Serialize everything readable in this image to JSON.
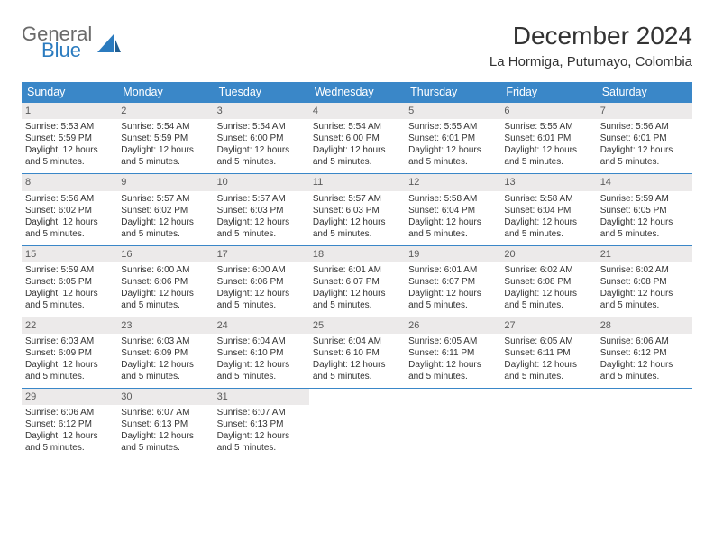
{
  "brand": {
    "general": "General",
    "blue": "Blue",
    "accent": "#2b7bbf",
    "gray": "#6a6a6a"
  },
  "title": "December 2024",
  "location": "La Hormiga, Putumayo, Colombia",
  "header_bg": "#3a87c8",
  "daynum_bg": "#eceaea",
  "columns": [
    "Sunday",
    "Monday",
    "Tuesday",
    "Wednesday",
    "Thursday",
    "Friday",
    "Saturday"
  ],
  "weeks": [
    [
      {
        "n": "1",
        "sr": "Sunrise: 5:53 AM",
        "ss": "Sunset: 5:59 PM",
        "dl": "Daylight: 12 hours and 5 minutes."
      },
      {
        "n": "2",
        "sr": "Sunrise: 5:54 AM",
        "ss": "Sunset: 5:59 PM",
        "dl": "Daylight: 12 hours and 5 minutes."
      },
      {
        "n": "3",
        "sr": "Sunrise: 5:54 AM",
        "ss": "Sunset: 6:00 PM",
        "dl": "Daylight: 12 hours and 5 minutes."
      },
      {
        "n": "4",
        "sr": "Sunrise: 5:54 AM",
        "ss": "Sunset: 6:00 PM",
        "dl": "Daylight: 12 hours and 5 minutes."
      },
      {
        "n": "5",
        "sr": "Sunrise: 5:55 AM",
        "ss": "Sunset: 6:01 PM",
        "dl": "Daylight: 12 hours and 5 minutes."
      },
      {
        "n": "6",
        "sr": "Sunrise: 5:55 AM",
        "ss": "Sunset: 6:01 PM",
        "dl": "Daylight: 12 hours and 5 minutes."
      },
      {
        "n": "7",
        "sr": "Sunrise: 5:56 AM",
        "ss": "Sunset: 6:01 PM",
        "dl": "Daylight: 12 hours and 5 minutes."
      }
    ],
    [
      {
        "n": "8",
        "sr": "Sunrise: 5:56 AM",
        "ss": "Sunset: 6:02 PM",
        "dl": "Daylight: 12 hours and 5 minutes."
      },
      {
        "n": "9",
        "sr": "Sunrise: 5:57 AM",
        "ss": "Sunset: 6:02 PM",
        "dl": "Daylight: 12 hours and 5 minutes."
      },
      {
        "n": "10",
        "sr": "Sunrise: 5:57 AM",
        "ss": "Sunset: 6:03 PM",
        "dl": "Daylight: 12 hours and 5 minutes."
      },
      {
        "n": "11",
        "sr": "Sunrise: 5:57 AM",
        "ss": "Sunset: 6:03 PM",
        "dl": "Daylight: 12 hours and 5 minutes."
      },
      {
        "n": "12",
        "sr": "Sunrise: 5:58 AM",
        "ss": "Sunset: 6:04 PM",
        "dl": "Daylight: 12 hours and 5 minutes."
      },
      {
        "n": "13",
        "sr": "Sunrise: 5:58 AM",
        "ss": "Sunset: 6:04 PM",
        "dl": "Daylight: 12 hours and 5 minutes."
      },
      {
        "n": "14",
        "sr": "Sunrise: 5:59 AM",
        "ss": "Sunset: 6:05 PM",
        "dl": "Daylight: 12 hours and 5 minutes."
      }
    ],
    [
      {
        "n": "15",
        "sr": "Sunrise: 5:59 AM",
        "ss": "Sunset: 6:05 PM",
        "dl": "Daylight: 12 hours and 5 minutes."
      },
      {
        "n": "16",
        "sr": "Sunrise: 6:00 AM",
        "ss": "Sunset: 6:06 PM",
        "dl": "Daylight: 12 hours and 5 minutes."
      },
      {
        "n": "17",
        "sr": "Sunrise: 6:00 AM",
        "ss": "Sunset: 6:06 PM",
        "dl": "Daylight: 12 hours and 5 minutes."
      },
      {
        "n": "18",
        "sr": "Sunrise: 6:01 AM",
        "ss": "Sunset: 6:07 PM",
        "dl": "Daylight: 12 hours and 5 minutes."
      },
      {
        "n": "19",
        "sr": "Sunrise: 6:01 AM",
        "ss": "Sunset: 6:07 PM",
        "dl": "Daylight: 12 hours and 5 minutes."
      },
      {
        "n": "20",
        "sr": "Sunrise: 6:02 AM",
        "ss": "Sunset: 6:08 PM",
        "dl": "Daylight: 12 hours and 5 minutes."
      },
      {
        "n": "21",
        "sr": "Sunrise: 6:02 AM",
        "ss": "Sunset: 6:08 PM",
        "dl": "Daylight: 12 hours and 5 minutes."
      }
    ],
    [
      {
        "n": "22",
        "sr": "Sunrise: 6:03 AM",
        "ss": "Sunset: 6:09 PM",
        "dl": "Daylight: 12 hours and 5 minutes."
      },
      {
        "n": "23",
        "sr": "Sunrise: 6:03 AM",
        "ss": "Sunset: 6:09 PM",
        "dl": "Daylight: 12 hours and 5 minutes."
      },
      {
        "n": "24",
        "sr": "Sunrise: 6:04 AM",
        "ss": "Sunset: 6:10 PM",
        "dl": "Daylight: 12 hours and 5 minutes."
      },
      {
        "n": "25",
        "sr": "Sunrise: 6:04 AM",
        "ss": "Sunset: 6:10 PM",
        "dl": "Daylight: 12 hours and 5 minutes."
      },
      {
        "n": "26",
        "sr": "Sunrise: 6:05 AM",
        "ss": "Sunset: 6:11 PM",
        "dl": "Daylight: 12 hours and 5 minutes."
      },
      {
        "n": "27",
        "sr": "Sunrise: 6:05 AM",
        "ss": "Sunset: 6:11 PM",
        "dl": "Daylight: 12 hours and 5 minutes."
      },
      {
        "n": "28",
        "sr": "Sunrise: 6:06 AM",
        "ss": "Sunset: 6:12 PM",
        "dl": "Daylight: 12 hours and 5 minutes."
      }
    ],
    [
      {
        "n": "29",
        "sr": "Sunrise: 6:06 AM",
        "ss": "Sunset: 6:12 PM",
        "dl": "Daylight: 12 hours and 5 minutes."
      },
      {
        "n": "30",
        "sr": "Sunrise: 6:07 AM",
        "ss": "Sunset: 6:13 PM",
        "dl": "Daylight: 12 hours and 5 minutes."
      },
      {
        "n": "31",
        "sr": "Sunrise: 6:07 AM",
        "ss": "Sunset: 6:13 PM",
        "dl": "Daylight: 12 hours and 5 minutes."
      },
      null,
      null,
      null,
      null
    ]
  ]
}
